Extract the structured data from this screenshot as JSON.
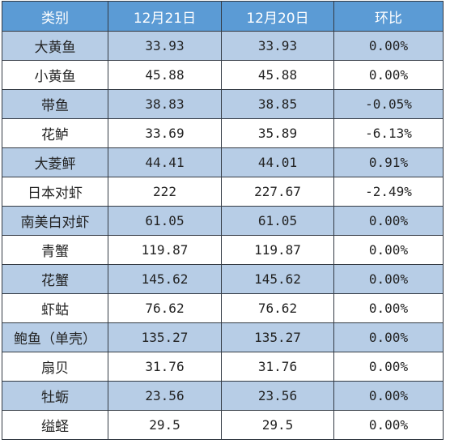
{
  "header": {
    "category": "类别",
    "date1": "12月21日",
    "date2": "12月20日",
    "change": "环比"
  },
  "rows": [
    {
      "name": "大黄鱼",
      "d21": "33.93",
      "d20": "33.93",
      "chg": "0.00%"
    },
    {
      "name": "小黄鱼",
      "d21": "45.88",
      "d20": "45.88",
      "chg": "0.00%"
    },
    {
      "name": "带鱼",
      "d21": "38.83",
      "d20": "38.85",
      "chg": "-0.05%"
    },
    {
      "name": "花鲈",
      "d21": "33.69",
      "d20": "35.89",
      "chg": "-6.13%"
    },
    {
      "name": "大菱鲆",
      "d21": "44.41",
      "d20": "44.01",
      "chg": "0.91%"
    },
    {
      "name": "日本对虾",
      "d21": "222",
      "d20": "227.67",
      "chg": "-2.49%"
    },
    {
      "name": "南美白对虾",
      "d21": "61.05",
      "d20": "61.05",
      "chg": "0.00%"
    },
    {
      "name": "青蟹",
      "d21": "119.87",
      "d20": "119.87",
      "chg": "0.00%"
    },
    {
      "name": "花蟹",
      "d21": "145.62",
      "d20": "145.62",
      "chg": "0.00%"
    },
    {
      "name": "虾蛄",
      "d21": "76.62",
      "d20": "76.62",
      "chg": "0.00%"
    },
    {
      "name": "鲍鱼（单壳）",
      "d21": "135.27",
      "d20": "135.27",
      "chg": "0.00%"
    },
    {
      "name": "扇贝",
      "d21": "31.76",
      "d20": "31.76",
      "chg": "0.00%"
    },
    {
      "name": "牡蛎",
      "d21": "23.56",
      "d20": "23.56",
      "chg": "0.00%"
    },
    {
      "name": "缢蛏",
      "d21": "29.5",
      "d20": "29.5",
      "chg": "0.00%"
    }
  ],
  "colors": {
    "header_bg": "#5b9bd5",
    "header_text": "#ffffff",
    "band_bg": "#b7cde6",
    "plain_bg": "#ffffff"
  }
}
